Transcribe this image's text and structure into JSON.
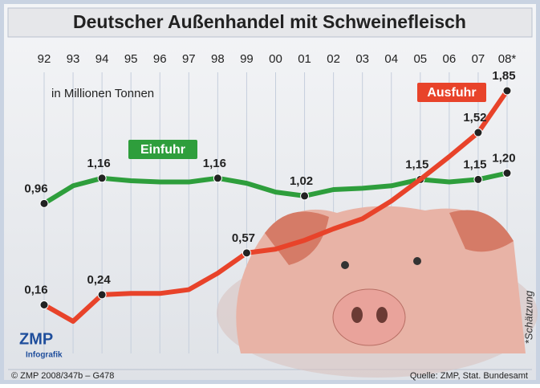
{
  "chart_data": {
    "type": "line",
    "title": "Deutscher Außenhandel mit Schweinefleisch",
    "subtitle": "in Millionen Tonnen",
    "categories": [
      "92",
      "93",
      "94",
      "95",
      "96",
      "97",
      "98",
      "99",
      "00",
      "01",
      "02",
      "03",
      "04",
      "05",
      "06",
      "07",
      "08*"
    ],
    "series": [
      {
        "name": "Einfuhr",
        "color": "#2e9e3c",
        "values": [
          0.96,
          1.1,
          1.16,
          1.14,
          1.13,
          1.13,
          1.16,
          1.12,
          1.05,
          1.02,
          1.07,
          1.08,
          1.1,
          1.15,
          1.13,
          1.15,
          1.2
        ],
        "value_labels": [
          "0,96",
          null,
          "1,16",
          null,
          null,
          null,
          "1,16",
          null,
          null,
          "1,02",
          null,
          null,
          null,
          "1,15",
          null,
          "1,15",
          "1,20"
        ]
      },
      {
        "name": "Ausfuhr",
        "color": "#e8432a",
        "values": [
          0.16,
          0.03,
          0.24,
          0.25,
          0.25,
          0.28,
          0.41,
          0.57,
          0.6,
          0.67,
          0.76,
          0.84,
          0.98,
          1.15,
          1.33,
          1.52,
          1.85
        ],
        "value_labels": [
          "0,16",
          null,
          "0,24",
          null,
          null,
          null,
          null,
          "0,57",
          null,
          null,
          null,
          null,
          null,
          null,
          null,
          "1,52",
          "1,85"
        ]
      }
    ],
    "footnote": "*Schätzung",
    "logo": "ZMP",
    "logo_sub": "Infografik",
    "credit": "© ZMP 2008/347b – G478",
    "source": "Quelle: ZMP, Stat. Bundesamt"
  }
}
